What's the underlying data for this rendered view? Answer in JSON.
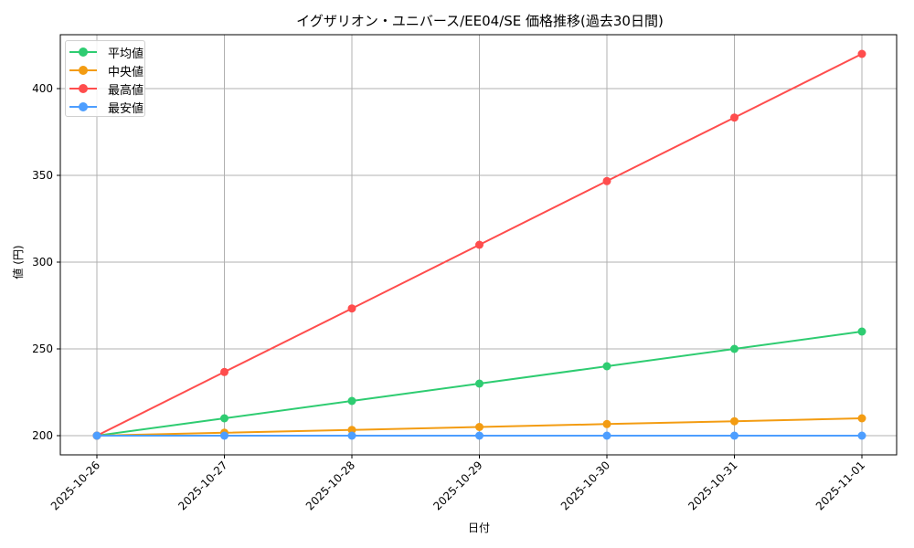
{
  "chart_data": {
    "type": "line",
    "title": "イグザリオン・ユニバース/EE04/SE 価格推移(過去30日間)",
    "xlabel": "日付",
    "ylabel": "値 (円)",
    "categories": [
      "2025-10-26",
      "2025-10-27",
      "2025-10-28",
      "2025-10-29",
      "2025-10-30",
      "2025-10-31",
      "2025-11-01"
    ],
    "series": [
      {
        "name": "平均値",
        "color": "#2ecc71",
        "values": [
          200,
          210,
          220,
          230,
          240,
          250,
          260
        ]
      },
      {
        "name": "中央値",
        "color": "#f39c12",
        "values": [
          200,
          201.7,
          203.3,
          205,
          206.7,
          208.3,
          210
        ]
      },
      {
        "name": "最高値",
        "color": "#ff4d4d",
        "values": [
          200,
          236.7,
          273.3,
          310,
          346.7,
          383.3,
          420
        ]
      },
      {
        "name": "最安値",
        "color": "#4d9eff",
        "values": [
          200,
          200,
          200,
          200,
          200,
          200,
          200
        ]
      }
    ],
    "yticks": [
      200,
      250,
      300,
      350,
      400
    ],
    "ylim": [
      189,
      431
    ],
    "grid": true,
    "legend_position": "upper left"
  }
}
